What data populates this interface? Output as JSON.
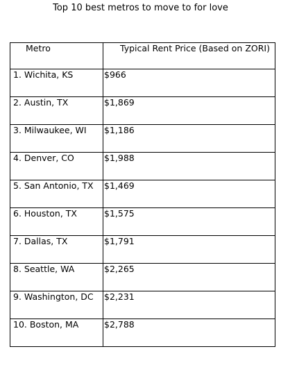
{
  "title": "Top 10 best metros to move to for love",
  "table": {
    "headers": [
      "Metro",
      "Typical Rent Price (Based on ZORI)"
    ],
    "rows": [
      {
        "metro": "1. Wichita, KS",
        "price": "$966"
      },
      {
        "metro": "2. Austin, TX",
        "price": "$1,869"
      },
      {
        "metro": "3. Milwaukee, WI",
        "price": "$1,186"
      },
      {
        "metro": "4. Denver, CO",
        "price": "$1,988"
      },
      {
        "metro": "5. San Antonio, TX",
        "price": "$1,469"
      },
      {
        "metro": "6. Houston, TX",
        "price": "$1,575"
      },
      {
        "metro": "7. Dallas, TX",
        "price": "$1,791"
      },
      {
        "metro": "8. Seattle, WA",
        "price": "$2,265"
      },
      {
        "metro": "9. Washington, DC",
        "price": "$2,231"
      },
      {
        "metro": "10. Boston, MA",
        "price": "$2,788"
      }
    ]
  }
}
